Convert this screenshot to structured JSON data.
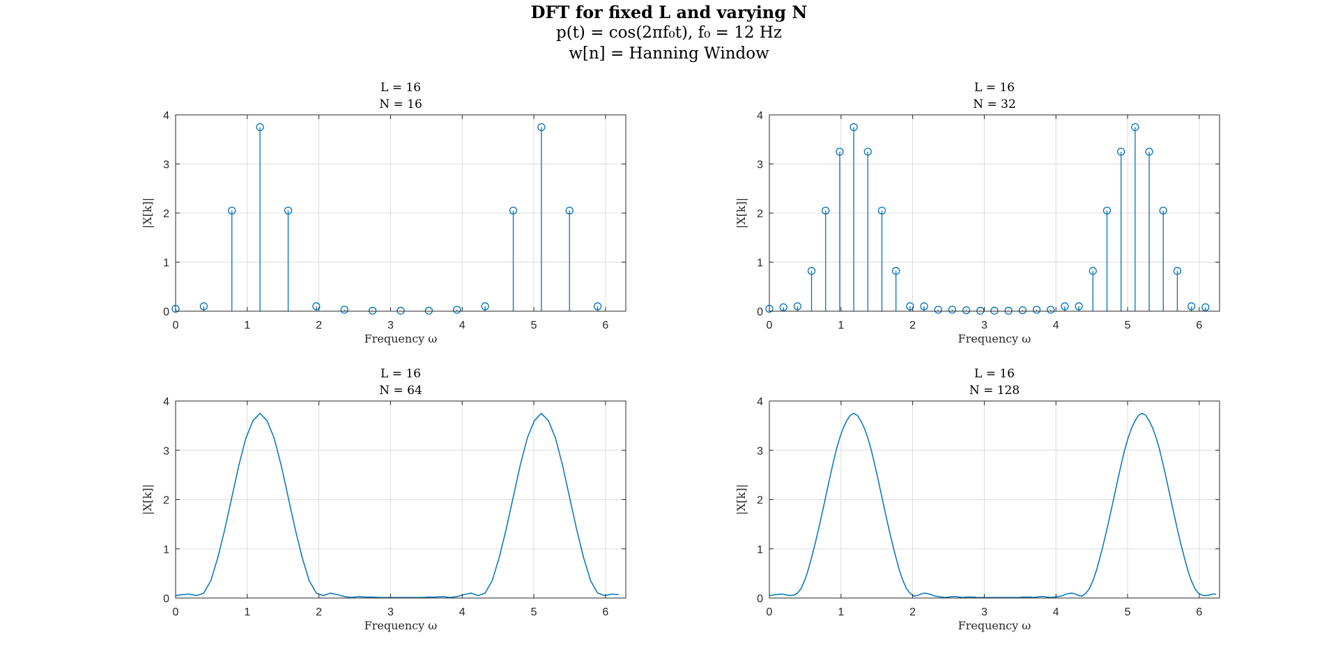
{
  "figure": {
    "title_line1": "DFT for fixed L and varying N",
    "title_line2": "p(t) = cos(2πf₀t), f₀ = 12 Hz",
    "title_line3": "w[n] = Hanning Window"
  },
  "colors": {
    "series": "#0072BD",
    "grid": "#dcdcdc",
    "axis": "#262626"
  },
  "chart_data": [
    {
      "type": "stem",
      "title_line1": "L = 16",
      "title_line2": "N = 16",
      "xlabel": "Frequency ω",
      "ylabel": "|X[k]|",
      "xlim": [
        0,
        6.2832
      ],
      "ylim": [
        0,
        4
      ],
      "xticks": [
        0,
        1,
        2,
        3,
        4,
        5,
        6
      ],
      "yticks": [
        0,
        1,
        2,
        3,
        4
      ],
      "grid": true,
      "N": 16,
      "x": [
        0,
        0.3927,
        0.7854,
        1.1781,
        1.5708,
        1.9635,
        2.3562,
        2.7489,
        3.1416,
        3.5343,
        3.927,
        4.3197,
        4.7124,
        5.1051,
        5.4978,
        5.8905
      ],
      "values": [
        0.05,
        0.1,
        2.05,
        3.75,
        2.05,
        0.1,
        0.03,
        0.01,
        0.01,
        0.01,
        0.03,
        0.1,
        2.05,
        3.75,
        2.05,
        0.1
      ]
    },
    {
      "type": "stem",
      "title_line1": "L = 16",
      "title_line2": "N = 32",
      "xlabel": "Frequency ω",
      "ylabel": "|X[k]|",
      "xlim": [
        0,
        6.2832
      ],
      "ylim": [
        0,
        4
      ],
      "xticks": [
        0,
        1,
        2,
        3,
        4,
        5,
        6
      ],
      "yticks": [
        0,
        1,
        2,
        3,
        4
      ],
      "grid": true,
      "N": 32,
      "x": [
        0,
        0.1963,
        0.3927,
        0.589,
        0.7854,
        0.9817,
        1.1781,
        1.3744,
        1.5708,
        1.7671,
        1.9635,
        2.1598,
        2.3562,
        2.5525,
        2.7489,
        2.9452,
        3.1416,
        3.3379,
        3.5343,
        3.7306,
        3.927,
        4.1233,
        4.3197,
        4.516,
        4.7124,
        4.9087,
        5.1051,
        5.3014,
        5.4978,
        5.6941,
        5.8905,
        6.0868
      ],
      "values": [
        0.05,
        0.08,
        0.1,
        0.82,
        2.05,
        3.25,
        3.75,
        3.25,
        2.05,
        0.82,
        0.1,
        0.1,
        0.03,
        0.03,
        0.02,
        0.01,
        0.01,
        0.01,
        0.02,
        0.03,
        0.03,
        0.1,
        0.1,
        0.82,
        2.05,
        3.25,
        3.75,
        3.25,
        2.05,
        0.82,
        0.1,
        0.08
      ]
    },
    {
      "type": "line",
      "title_line1": "L = 16",
      "title_line2": "N = 64",
      "xlabel": "Frequency ω",
      "ylabel": "|X[k]|",
      "xlim": [
        0,
        6.2832
      ],
      "ylim": [
        0,
        4
      ],
      "xticks": [
        0,
        1,
        2,
        3,
        4,
        5,
        6
      ],
      "yticks": [
        0,
        1,
        2,
        3,
        4
      ],
      "grid": true,
      "N": 64,
      "x": [
        0,
        0.0982,
        0.1963,
        0.2945,
        0.3927,
        0.4909,
        0.589,
        0.6872,
        0.7854,
        0.8836,
        0.9817,
        1.0799,
        1.1781,
        1.2763,
        1.3744,
        1.4726,
        1.5708,
        1.669,
        1.7671,
        1.8653,
        1.9635,
        2.0617,
        2.1598,
        2.258,
        2.3562,
        2.4544,
        2.5525,
        2.6507,
        2.7489,
        2.8471,
        2.9452,
        3.0434,
        3.1416,
        3.2398,
        3.3379,
        3.4361,
        3.5343,
        3.6325,
        3.7306,
        3.8288,
        3.927,
        4.0252,
        4.1233,
        4.2215,
        4.3197,
        4.4179,
        4.516,
        4.6142,
        4.7124,
        4.8106,
        4.9087,
        5.0069,
        5.1051,
        5.2033,
        5.3014,
        5.3996,
        5.4978,
        5.596,
        5.6941,
        5.7923,
        5.8905,
        5.9887,
        6.0868,
        6.185
      ],
      "values": [
        0.05,
        0.07,
        0.08,
        0.05,
        0.1,
        0.35,
        0.82,
        1.4,
        2.05,
        2.7,
        3.25,
        3.6,
        3.75,
        3.6,
        3.25,
        2.7,
        2.05,
        1.4,
        0.82,
        0.35,
        0.1,
        0.05,
        0.1,
        0.07,
        0.03,
        0.01,
        0.03,
        0.02,
        0.02,
        0.01,
        0.01,
        0.01,
        0.01,
        0.01,
        0.01,
        0.01,
        0.02,
        0.02,
        0.03,
        0.01,
        0.03,
        0.07,
        0.1,
        0.05,
        0.1,
        0.35,
        0.82,
        1.4,
        2.05,
        2.7,
        3.25,
        3.6,
        3.75,
        3.6,
        3.25,
        2.7,
        2.05,
        1.4,
        0.82,
        0.35,
        0.1,
        0.05,
        0.08,
        0.07
      ]
    },
    {
      "type": "line",
      "title_line1": "L = 16",
      "title_line2": "N = 128",
      "xlabel": "Frequency ω",
      "ylabel": "|X[k]|",
      "xlim": [
        0,
        6.2832
      ],
      "ylim": [
        0,
        4
      ],
      "xticks": [
        0,
        1,
        2,
        3,
        4,
        5,
        6
      ],
      "yticks": [
        0,
        1,
        2,
        3,
        4
      ],
      "grid": true,
      "N": 128,
      "x": [
        0,
        0.0491,
        0.0982,
        0.1473,
        0.1963,
        0.2454,
        0.2945,
        0.3436,
        0.3927,
        0.4418,
        0.4909,
        0.54,
        0.589,
        0.6381,
        0.6872,
        0.7363,
        0.7854,
        0.8345,
        0.8836,
        0.9327,
        0.9817,
        1.0308,
        1.0799,
        1.129,
        1.1781,
        1.2272,
        1.2763,
        1.3254,
        1.3744,
        1.4235,
        1.4726,
        1.5217,
        1.5708,
        1.6199,
        1.669,
        1.7181,
        1.7671,
        1.8162,
        1.8653,
        1.9144,
        1.9635,
        2.0126,
        2.0617,
        2.1108,
        2.1598,
        2.2089,
        2.258,
        2.3071,
        2.3562,
        2.4053,
        2.4544,
        2.5035,
        2.5525,
        2.6016,
        2.6507,
        2.6998,
        2.7489,
        2.798,
        2.8471,
        2.8962,
        2.9452,
        2.9943,
        3.0434,
        3.0925,
        3.1416,
        3.1907,
        3.2398,
        3.2889,
        3.3379,
        3.387,
        3.4361,
        3.4852,
        3.5343,
        3.5834,
        3.6325,
        3.6816,
        3.7306,
        3.7797,
        3.8288,
        3.8779,
        3.927,
        3.9761,
        4.0252,
        4.0743,
        4.1233,
        4.1724,
        4.2215,
        4.2706,
        4.3197,
        4.3688,
        4.4179,
        4.467,
        4.516,
        4.5651,
        4.6142,
        4.6633,
        4.7124,
        4.7615,
        4.8106,
        4.8597,
        4.9087,
        4.9578,
        5.0069,
        5.056,
        5.1051,
        5.1542,
        5.2033,
        5.2524,
        5.3014,
        5.3505,
        5.3996,
        5.4487,
        5.4978,
        5.5469,
        5.596,
        5.6451,
        5.6941,
        5.7432,
        5.7923,
        5.8414,
        5.8905,
        5.9396,
        5.9887,
        6.0378,
        6.0868,
        6.1359,
        6.185,
        6.2341
      ],
      "values": [
        0.05,
        0.06,
        0.07,
        0.08,
        0.08,
        0.06,
        0.05,
        0.06,
        0.1,
        0.19,
        0.35,
        0.56,
        0.82,
        1.1,
        1.4,
        1.72,
        2.05,
        2.38,
        2.7,
        3.0,
        3.25,
        3.45,
        3.6,
        3.71,
        3.75,
        3.71,
        3.6,
        3.45,
        3.25,
        3.0,
        2.7,
        2.38,
        2.05,
        1.72,
        1.4,
        1.1,
        0.82,
        0.56,
        0.35,
        0.19,
        0.1,
        0.04,
        0.05,
        0.08,
        0.1,
        0.09,
        0.07,
        0.04,
        0.03,
        0.02,
        0.01,
        0.02,
        0.03,
        0.03,
        0.02,
        0.01,
        0.02,
        0.02,
        0.02,
        0.01,
        0.01,
        0.01,
        0.01,
        0.01,
        0.01,
        0.01,
        0.01,
        0.01,
        0.01,
        0.01,
        0.01,
        0.01,
        0.02,
        0.02,
        0.02,
        0.01,
        0.02,
        0.03,
        0.03,
        0.02,
        0.01,
        0.02,
        0.03,
        0.04,
        0.07,
        0.09,
        0.1,
        0.08,
        0.05,
        0.04,
        0.1,
        0.19,
        0.35,
        0.56,
        0.82,
        1.1,
        1.4,
        1.72,
        2.05,
        2.38,
        2.7,
        3.0,
        3.25,
        3.45,
        3.6,
        3.71,
        3.75,
        3.71,
        3.6,
        3.45,
        3.25,
        3.0,
        2.7,
        2.38,
        2.05,
        1.72,
        1.4,
        1.1,
        0.82,
        0.56,
        0.35,
        0.19,
        0.1,
        0.06,
        0.05,
        0.06,
        0.08,
        0.08
      ]
    }
  ]
}
